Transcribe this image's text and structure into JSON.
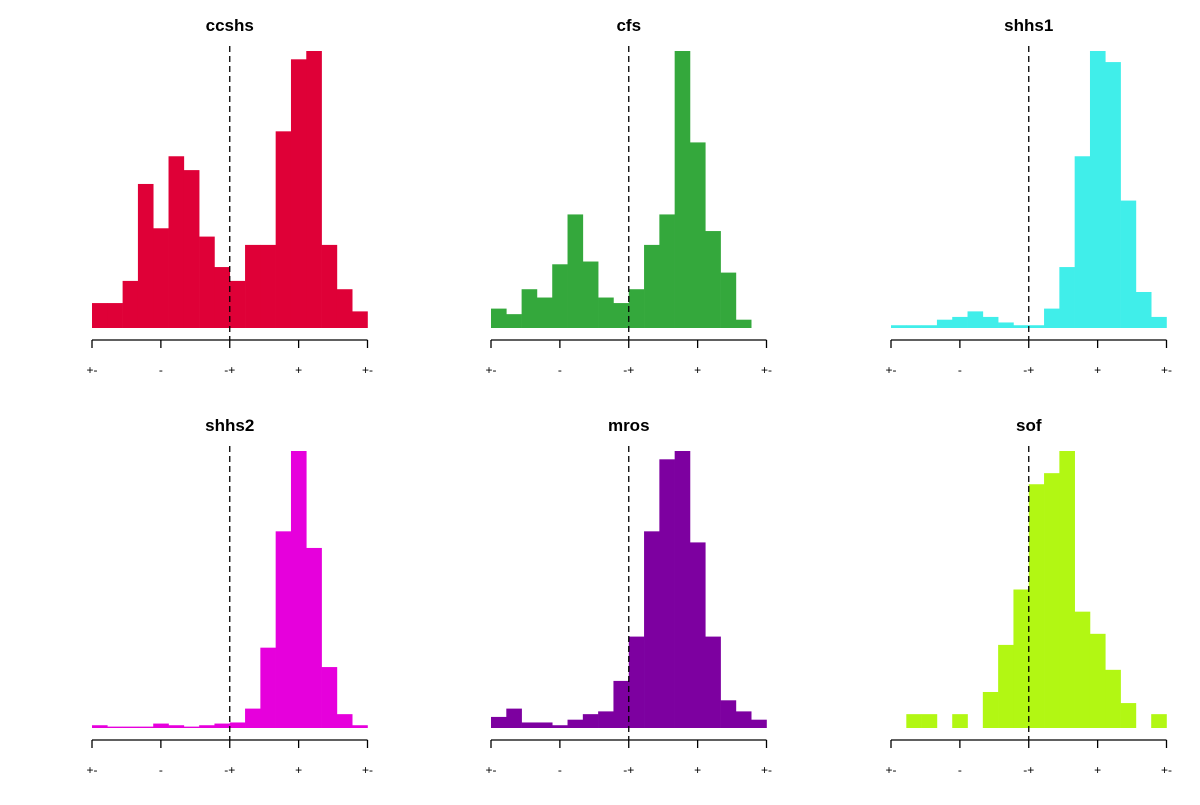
{
  "chart_data": [
    {
      "type": "bar",
      "title": "ccshs",
      "color": "#DF0037",
      "xlim": [
        -2,
        2
      ],
      "ylim": [
        0,
        100
      ],
      "bins": 18,
      "ticks": [
        -2,
        -1,
        0,
        1,
        2
      ],
      "tick_labels": [
        "+-",
        "-",
        "-+",
        "+",
        "+-"
      ],
      "reference_line": 0,
      "values": [
        9,
        9,
        17,
        52,
        36,
        62,
        57,
        33,
        22,
        17,
        30,
        30,
        71,
        97,
        100,
        30,
        14,
        6
      ]
    },
    {
      "type": "bar",
      "title": "cfs",
      "color": "#34A83C",
      "xlim": [
        -2,
        2
      ],
      "ylim": [
        0,
        100
      ],
      "bins": 18,
      "ticks": [
        -2,
        -1,
        0,
        1,
        2
      ],
      "tick_labels": [
        "+-",
        "-",
        "-+",
        "+",
        "+-"
      ],
      "reference_line": 0,
      "values": [
        7,
        5,
        14,
        11,
        23,
        41,
        24,
        11,
        9,
        14,
        30,
        41,
        100,
        67,
        35,
        20,
        3,
        0
      ]
    },
    {
      "type": "bar",
      "title": "shhs1",
      "color": "#40EEEA",
      "xlim": [
        -2,
        2
      ],
      "ylim": [
        0,
        100
      ],
      "bins": 18,
      "ticks": [
        -2,
        -1,
        0,
        1,
        2
      ],
      "tick_labels": [
        "+-",
        "-",
        "-+",
        "+",
        "+-"
      ],
      "reference_line": 0,
      "values": [
        1,
        1,
        1,
        3,
        4,
        6,
        4,
        2,
        1,
        1,
        7,
        22,
        62,
        100,
        96,
        46,
        13,
        4
      ]
    },
    {
      "type": "bar",
      "title": "shhs2",
      "color": "#E600DC",
      "xlim": [
        -2,
        2
      ],
      "ylim": [
        0,
        100
      ],
      "bins": 18,
      "ticks": [
        -2,
        -1,
        0,
        1,
        2
      ],
      "tick_labels": [
        "+-",
        "-",
        "-+",
        "+",
        "+-"
      ],
      "reference_line": 0,
      "values": [
        1,
        0.5,
        0.5,
        0.5,
        1.6,
        1,
        0.5,
        1,
        1.6,
        2,
        7,
        29,
        71,
        100,
        65,
        22,
        5,
        1
      ]
    },
    {
      "type": "bar",
      "title": "mros",
      "color": "#7D00A0",
      "xlim": [
        -2,
        2
      ],
      "ylim": [
        0,
        100
      ],
      "bins": 18,
      "ticks": [
        -2,
        -1,
        0,
        1,
        2
      ],
      "tick_labels": [
        "+-",
        "-",
        "-+",
        "+",
        "+-"
      ],
      "reference_line": 0,
      "values": [
        4,
        7,
        2,
        2,
        1,
        3,
        5,
        6,
        17,
        33,
        71,
        97,
        100,
        67,
        33,
        10,
        6,
        3
      ]
    },
    {
      "type": "bar",
      "title": "sof",
      "color": "#B2F713",
      "xlim": [
        -2,
        2
      ],
      "ylim": [
        0,
        100
      ],
      "bins": 18,
      "ticks": [
        -2,
        -1,
        0,
        1,
        2
      ],
      "tick_labels": [
        "+-",
        "-",
        "-+",
        "+",
        "+-"
      ],
      "reference_line": 0,
      "values": [
        0,
        5,
        5,
        0,
        5,
        0,
        13,
        30,
        50,
        88,
        92,
        100,
        42,
        34,
        21,
        9,
        0,
        5
      ]
    }
  ]
}
